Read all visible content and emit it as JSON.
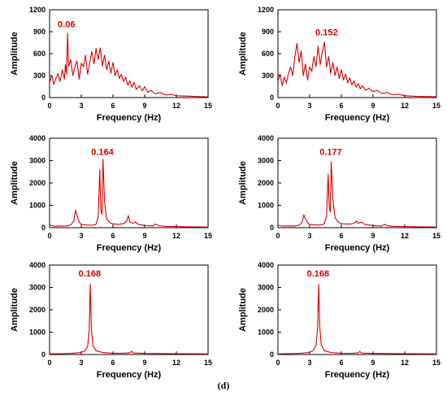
{
  "caption": "(d)",
  "colors": {
    "series": "#d40000",
    "annotation": "#d40000",
    "axis": "#000000"
  },
  "chart_data": [
    {
      "type": "line",
      "xlabel": "Frequency (Hz)",
      "ylabel": "Amplitude",
      "xlim": [
        0,
        15
      ],
      "ylim": [
        0,
        1200
      ],
      "xticks": [
        "0",
        "3",
        "6",
        "9",
        "12",
        "15"
      ],
      "yticks": [
        "0",
        "300",
        "600",
        "900",
        "1200"
      ],
      "annotation": {
        "text": "0.06",
        "x": 1.6,
        "y": 960
      },
      "series": [
        {
          "points": [
            [
              0,
              200
            ],
            [
              0.2,
              300
            ],
            [
              0.4,
              180
            ],
            [
              0.6,
              260
            ],
            [
              0.8,
              330
            ],
            [
              1.0,
              220
            ],
            [
              1.2,
              380
            ],
            [
              1.4,
              250
            ],
            [
              1.5,
              450
            ],
            [
              1.6,
              320
            ],
            [
              1.7,
              880
            ],
            [
              1.8,
              420
            ],
            [
              2.0,
              520
            ],
            [
              2.2,
              300
            ],
            [
              2.4,
              420
            ],
            [
              2.6,
              500
            ],
            [
              2.8,
              250
            ],
            [
              3.0,
              470
            ],
            [
              3.2,
              420
            ],
            [
              3.4,
              580
            ],
            [
              3.6,
              320
            ],
            [
              3.8,
              470
            ],
            [
              4.0,
              630
            ],
            [
              4.2,
              460
            ],
            [
              4.4,
              670
            ],
            [
              4.6,
              520
            ],
            [
              4.8,
              680
            ],
            [
              5.0,
              430
            ],
            [
              5.2,
              580
            ],
            [
              5.4,
              380
            ],
            [
              5.6,
              500
            ],
            [
              5.8,
              330
            ],
            [
              6.0,
              480
            ],
            [
              6.2,
              300
            ],
            [
              6.4,
              380
            ],
            [
              6.6,
              260
            ],
            [
              6.8,
              320
            ],
            [
              7.0,
              220
            ],
            [
              7.2,
              280
            ],
            [
              7.4,
              170
            ],
            [
              7.6,
              230
            ],
            [
              7.8,
              140
            ],
            [
              8.0,
              210
            ],
            [
              8.2,
              110
            ],
            [
              8.5,
              160
            ],
            [
              8.8,
              95
            ],
            [
              9.0,
              150
            ],
            [
              9.3,
              70
            ],
            [
              9.6,
              100
            ],
            [
              10.0,
              50
            ],
            [
              10.5,
              70
            ],
            [
              11.0,
              35
            ],
            [
              11.5,
              45
            ],
            [
              12.0,
              25
            ],
            [
              13.0,
              20
            ],
            [
              14.0,
              15
            ],
            [
              15.0,
              10
            ]
          ]
        }
      ]
    },
    {
      "type": "line",
      "xlabel": "Frequency (Hz)",
      "ylabel": "Amplitude",
      "xlim": [
        0,
        15
      ],
      "ylim": [
        0,
        1200
      ],
      "xticks": [
        "0",
        "3",
        "6",
        "9",
        "12",
        "15"
      ],
      "yticks": [
        "0",
        "300",
        "600",
        "900",
        "1200"
      ],
      "annotation": {
        "text": "0.152",
        "x": 4.6,
        "y": 850
      },
      "series": [
        {
          "points": [
            [
              0,
              220
            ],
            [
              0.2,
              320
            ],
            [
              0.4,
              160
            ],
            [
              0.6,
              280
            ],
            [
              0.8,
              200
            ],
            [
              1.0,
              330
            ],
            [
              1.2,
              420
            ],
            [
              1.4,
              300
            ],
            [
              1.6,
              560
            ],
            [
              1.8,
              740
            ],
            [
              2.0,
              480
            ],
            [
              2.2,
              640
            ],
            [
              2.4,
              300
            ],
            [
              2.6,
              460
            ],
            [
              2.8,
              240
            ],
            [
              3.0,
              420
            ],
            [
              3.2,
              360
            ],
            [
              3.4,
              560
            ],
            [
              3.6,
              420
            ],
            [
              3.8,
              700
            ],
            [
              4.0,
              450
            ],
            [
              4.2,
              620
            ],
            [
              4.4,
              760
            ],
            [
              4.6,
              420
            ],
            [
              4.8,
              560
            ],
            [
              5.0,
              330
            ],
            [
              5.2,
              480
            ],
            [
              5.4,
              300
            ],
            [
              5.6,
              420
            ],
            [
              5.8,
              260
            ],
            [
              6.0,
              380
            ],
            [
              6.2,
              240
            ],
            [
              6.4,
              320
            ],
            [
              6.6,
              200
            ],
            [
              6.8,
              270
            ],
            [
              7.0,
              170
            ],
            [
              7.2,
              230
            ],
            [
              7.4,
              140
            ],
            [
              7.6,
              190
            ],
            [
              7.8,
              120
            ],
            [
              8.0,
              160
            ],
            [
              8.3,
              100
            ],
            [
              8.6,
              130
            ],
            [
              9.0,
              80
            ],
            [
              9.4,
              100
            ],
            [
              9.8,
              55
            ],
            [
              10.3,
              70
            ],
            [
              10.8,
              40
            ],
            [
              11.4,
              45
            ],
            [
              12.0,
              25
            ],
            [
              13.0,
              18
            ],
            [
              14.0,
              15
            ],
            [
              15.0,
              10
            ]
          ]
        }
      ]
    },
    {
      "type": "line",
      "xlabel": "Frequency (Hz)",
      "ylabel": "Amplitude",
      "xlim": [
        0,
        15
      ],
      "ylim": [
        0,
        4000
      ],
      "xticks": [
        "0",
        "3",
        "6",
        "9",
        "12",
        "15"
      ],
      "yticks": [
        "0",
        "1000",
        "2000",
        "3000",
        "4000"
      ],
      "annotation": {
        "text": "0.164",
        "x": 5.0,
        "y": 3250
      },
      "series": [
        {
          "points": [
            [
              0,
              120
            ],
            [
              0.5,
              60
            ],
            [
              1.0,
              80
            ],
            [
              1.5,
              70
            ],
            [
              2.0,
              120
            ],
            [
              2.3,
              300
            ],
            [
              2.45,
              780
            ],
            [
              2.6,
              550
            ],
            [
              2.8,
              250
            ],
            [
              3.0,
              150
            ],
            [
              3.5,
              120
            ],
            [
              4.0,
              110
            ],
            [
              4.4,
              150
            ],
            [
              4.6,
              500
            ],
            [
              4.75,
              2600
            ],
            [
              4.85,
              800
            ],
            [
              4.95,
              600
            ],
            [
              5.05,
              3050
            ],
            [
              5.2,
              1200
            ],
            [
              5.4,
              400
            ],
            [
              5.7,
              220
            ],
            [
              6.0,
              170
            ],
            [
              6.5,
              150
            ],
            [
              7.0,
              180
            ],
            [
              7.3,
              300
            ],
            [
              7.45,
              550
            ],
            [
              7.6,
              250
            ],
            [
              7.9,
              200
            ],
            [
              8.1,
              260
            ],
            [
              8.4,
              150
            ],
            [
              9.0,
              100
            ],
            [
              9.8,
              80
            ],
            [
              10.0,
              170
            ],
            [
              10.3,
              90
            ],
            [
              11.0,
              60
            ],
            [
              12.0,
              50
            ],
            [
              13.0,
              40
            ],
            [
              14.0,
              35
            ],
            [
              15.0,
              30
            ]
          ]
        }
      ]
    },
    {
      "type": "line",
      "xlabel": "Frequency (Hz)",
      "ylabel": "Amplitude",
      "xlim": [
        0,
        15
      ],
      "ylim": [
        0,
        4000
      ],
      "xticks": [
        "0",
        "3",
        "6",
        "9",
        "12",
        "15"
      ],
      "yticks": [
        "0",
        "1000",
        "2000",
        "3000",
        "4000"
      ],
      "annotation": {
        "text": "0.177",
        "x": 5.0,
        "y": 3250
      },
      "series": [
        {
          "points": [
            [
              0,
              110
            ],
            [
              0.5,
              70
            ],
            [
              1.0,
              80
            ],
            [
              1.5,
              70
            ],
            [
              2.0,
              110
            ],
            [
              2.3,
              250
            ],
            [
              2.45,
              580
            ],
            [
              2.6,
              400
            ],
            [
              2.8,
              220
            ],
            [
              3.0,
              140
            ],
            [
              3.5,
              120
            ],
            [
              4.0,
              120
            ],
            [
              4.4,
              170
            ],
            [
              4.6,
              550
            ],
            [
              4.75,
              2400
            ],
            [
              4.85,
              900
            ],
            [
              4.95,
              700
            ],
            [
              5.05,
              2950
            ],
            [
              5.2,
              1300
            ],
            [
              5.4,
              450
            ],
            [
              5.7,
              250
            ],
            [
              6.0,
              180
            ],
            [
              6.5,
              160
            ],
            [
              7.0,
              170
            ],
            [
              7.3,
              230
            ],
            [
              7.45,
              300
            ],
            [
              7.6,
              200
            ],
            [
              7.9,
              250
            ],
            [
              8.2,
              140
            ],
            [
              9.0,
              100
            ],
            [
              9.8,
              70
            ],
            [
              10.1,
              150
            ],
            [
              10.4,
              80
            ],
            [
              11.0,
              60
            ],
            [
              12.0,
              50
            ],
            [
              13.0,
              40
            ],
            [
              14.0,
              35
            ],
            [
              15.0,
              30
            ]
          ]
        }
      ]
    },
    {
      "type": "line",
      "xlabel": "Frequency (Hz)",
      "ylabel": "Amplitude",
      "xlim": [
        0,
        15
      ],
      "ylim": [
        0,
        4000
      ],
      "xticks": [
        "0",
        "3",
        "6",
        "9",
        "12",
        "15"
      ],
      "yticks": [
        "0",
        "1000",
        "2000",
        "3000",
        "4000"
      ],
      "annotation": {
        "text": "0.168",
        "x": 3.8,
        "y": 3500
      },
      "series": [
        {
          "points": [
            [
              0,
              30
            ],
            [
              1.0,
              35
            ],
            [
              2.0,
              50
            ],
            [
              2.8,
              80
            ],
            [
              3.3,
              150
            ],
            [
              3.6,
              350
            ],
            [
              3.75,
              1100
            ],
            [
              3.85,
              3150
            ],
            [
              3.95,
              1200
            ],
            [
              4.1,
              400
            ],
            [
              4.4,
              170
            ],
            [
              5.0,
              90
            ],
            [
              6.0,
              60
            ],
            [
              7.0,
              60
            ],
            [
              7.6,
              80
            ],
            [
              7.75,
              150
            ],
            [
              7.9,
              70
            ],
            [
              9.0,
              50
            ],
            [
              11.0,
              40
            ],
            [
              13.0,
              35
            ],
            [
              15.0,
              30
            ]
          ]
        }
      ]
    },
    {
      "type": "line",
      "xlabel": "Frequency (Hz)",
      "ylabel": "Amplitude",
      "xlim": [
        0,
        15
      ],
      "ylim": [
        0,
        4000
      ],
      "xticks": [
        "0",
        "3",
        "6",
        "9",
        "12",
        "15"
      ],
      "yticks": [
        "0",
        "1000",
        "2000",
        "3000",
        "4000"
      ],
      "annotation": {
        "text": "0.168",
        "x": 3.8,
        "y": 3500
      },
      "series": [
        {
          "points": [
            [
              0,
              30
            ],
            [
              1.0,
              35
            ],
            [
              2.0,
              50
            ],
            [
              2.8,
              80
            ],
            [
              3.3,
              160
            ],
            [
              3.6,
              380
            ],
            [
              3.75,
              1150
            ],
            [
              3.85,
              3150
            ],
            [
              3.95,
              1250
            ],
            [
              4.1,
              420
            ],
            [
              4.4,
              170
            ],
            [
              5.0,
              90
            ],
            [
              6.0,
              60
            ],
            [
              7.0,
              55
            ],
            [
              7.6,
              75
            ],
            [
              7.75,
              140
            ],
            [
              7.9,
              65
            ],
            [
              9.0,
              50
            ],
            [
              11.0,
              40
            ],
            [
              13.0,
              35
            ],
            [
              15.0,
              30
            ]
          ]
        }
      ]
    }
  ]
}
